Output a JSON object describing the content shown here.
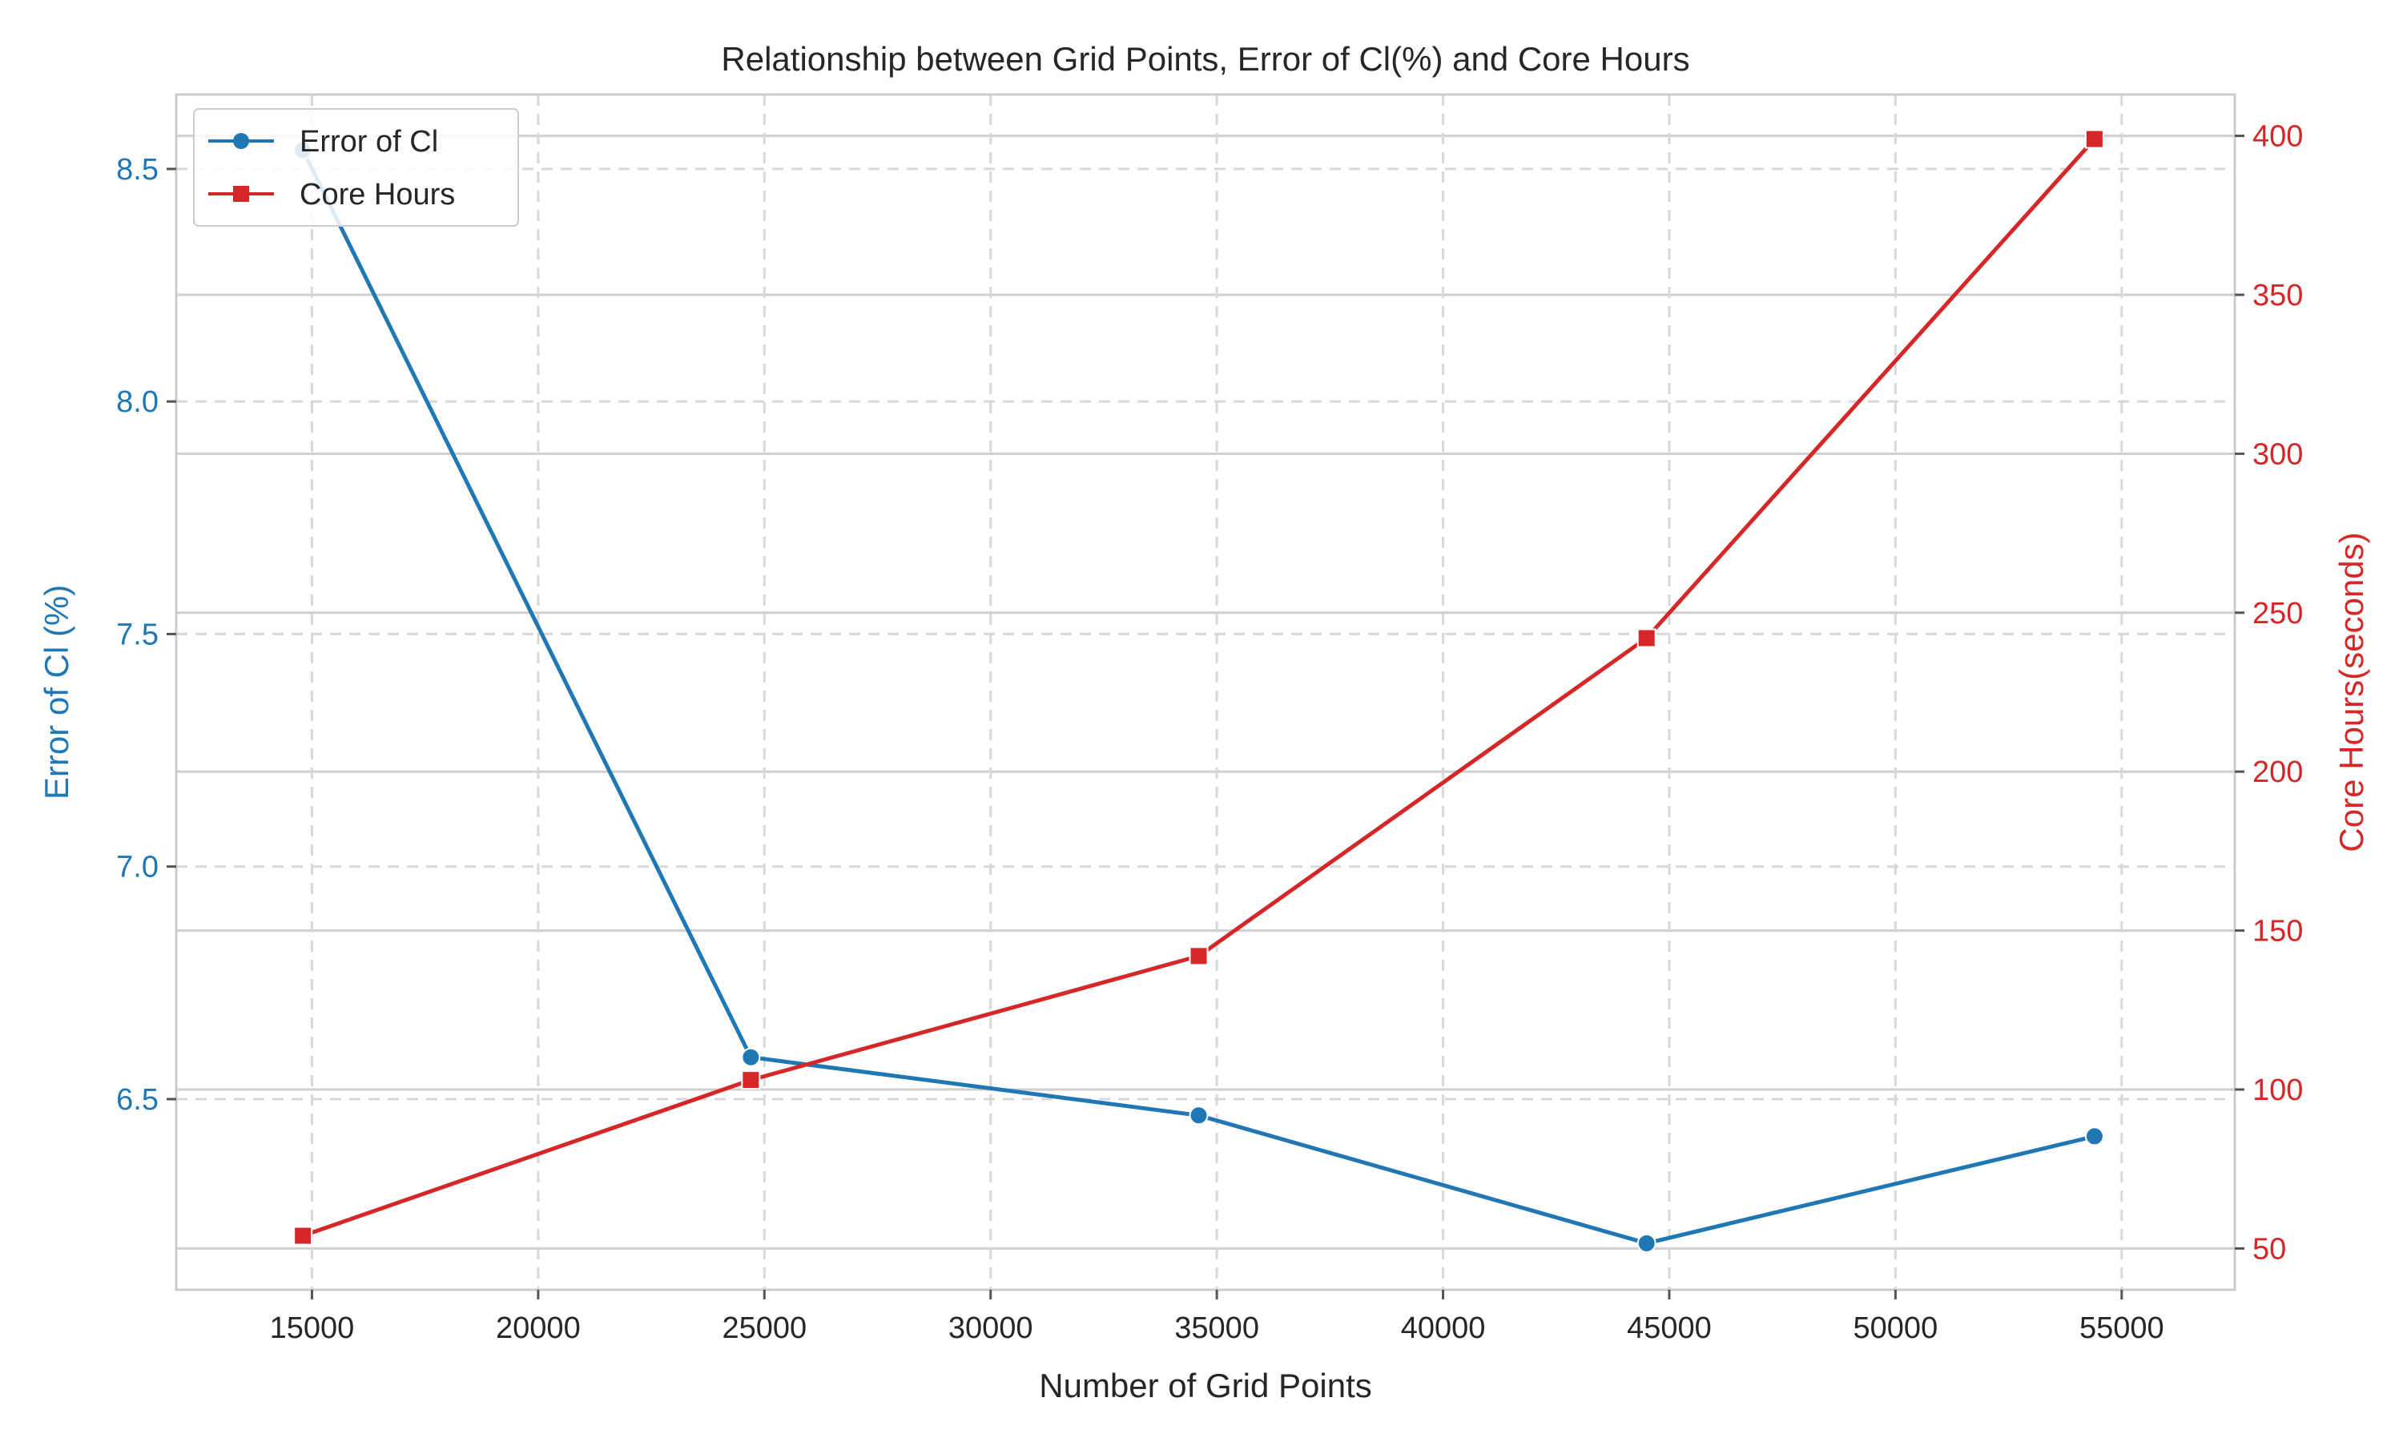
{
  "chart_data": {
    "type": "line",
    "title": "Relationship between Grid Points, Error of Cl(%) and Core Hours",
    "xlabel": "Number of Grid Points",
    "ylabel_left": "Error of Cl (%)",
    "ylabel_right": "Core Hours(seconds)",
    "x": [
      14800,
      24700,
      34600,
      44500,
      54400
    ],
    "xlim": [
      12000,
      57500
    ],
    "xticks": [
      15000,
      20000,
      25000,
      30000,
      35000,
      40000,
      45000,
      50000,
      55000
    ],
    "ylim_left": [
      6.09,
      8.66
    ],
    "yticks_left": [
      6.5,
      7.0,
      7.5,
      8.0,
      8.5
    ],
    "ylim_right": [
      37,
      413
    ],
    "yticks_right": [
      50,
      100,
      150,
      200,
      250,
      300,
      350,
      400
    ],
    "grid": true,
    "legend_position": "upper-left",
    "series": [
      {
        "name": "Error of Cl",
        "axis": "left",
        "marker": "circle",
        "color": "#1f77b4",
        "values": [
          8.54,
          6.59,
          6.465,
          6.19,
          6.42
        ]
      },
      {
        "name": "Core Hours",
        "axis": "right",
        "marker": "square",
        "color": "#d62728",
        "values": [
          54,
          103,
          142,
          242,
          399
        ]
      }
    ]
  }
}
